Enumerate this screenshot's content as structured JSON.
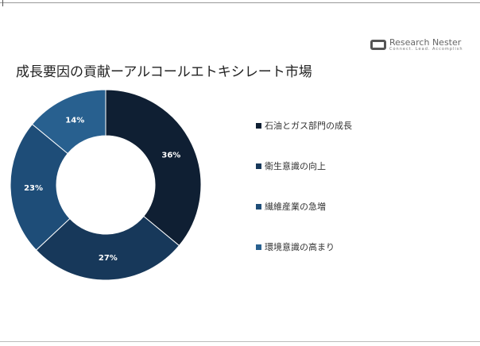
{
  "logo": {
    "name": "Research Nester",
    "tagline": "Connect. Lead. Accomplish"
  },
  "chart_data": {
    "type": "pie",
    "donut": true,
    "title": "成長要因の貢献ーアルコールエトキシレート市場",
    "categories": [
      "石油とガス部門の成長",
      "衛生意識の向上",
      "繊維産業の急増",
      "環境意識の高まり"
    ],
    "values": [
      36,
      27,
      23,
      14
    ],
    "labels": [
      "36%",
      "27%",
      "23%",
      "14%"
    ],
    "colors": [
      "#0f1f33",
      "#17385a",
      "#1e4d78",
      "#28608f"
    ],
    "legend": "right"
  }
}
